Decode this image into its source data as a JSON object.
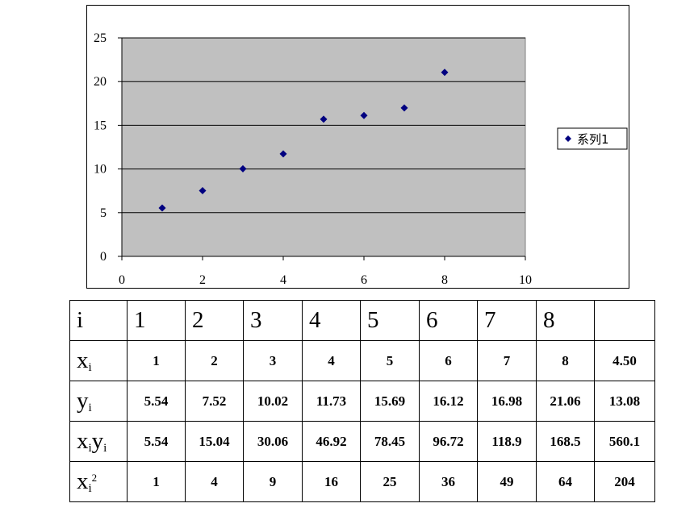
{
  "chart_data": {
    "type": "scatter",
    "x": [
      1,
      2,
      3,
      4,
      5,
      6,
      7,
      8
    ],
    "y": [
      5.54,
      7.52,
      10.02,
      11.73,
      15.69,
      16.12,
      16.98,
      21.06
    ],
    "series": [
      {
        "name": "系列1"
      }
    ],
    "xlim": [
      0,
      10
    ],
    "ylim": [
      0,
      25
    ],
    "xticks": [
      "0",
      "2",
      "4",
      "6",
      "8",
      "10"
    ],
    "yticks": [
      "0",
      "5",
      "10",
      "15",
      "20",
      "25"
    ],
    "grid": "horizontal",
    "legend_position": "right",
    "plot_background": "#c0c0c0",
    "marker_color": "#000080",
    "marker": "diamond"
  },
  "table": {
    "header": {
      "label": "i",
      "cells": [
        "1",
        "2",
        "3",
        "4",
        "5",
        "6",
        "7",
        "8",
        ""
      ]
    },
    "rows": [
      {
        "label": "x",
        "sub": "i",
        "cells": [
          "1",
          "2",
          "3",
          "4",
          "5",
          "6",
          "7",
          "8",
          "4.50"
        ]
      },
      {
        "label": "y",
        "sub": "i",
        "cells": [
          "5.54",
          "7.52",
          "10.02",
          "11.73",
          "15.69",
          "16.12",
          "16.98",
          "21.06",
          "13.08"
        ]
      },
      {
        "label": "x",
        "sub": "i",
        "label2": "y",
        "sub2": "i",
        "cells": [
          "5.54",
          "15.04",
          "30.06",
          "46.92",
          "78.45",
          "96.72",
          "118.9",
          "168.5",
          "560.1"
        ]
      },
      {
        "label": "x",
        "sub": "i",
        "sup": "2",
        "cells": [
          "1",
          "4",
          "9",
          "16",
          "25",
          "36",
          "49",
          "64",
          "204"
        ]
      }
    ]
  }
}
